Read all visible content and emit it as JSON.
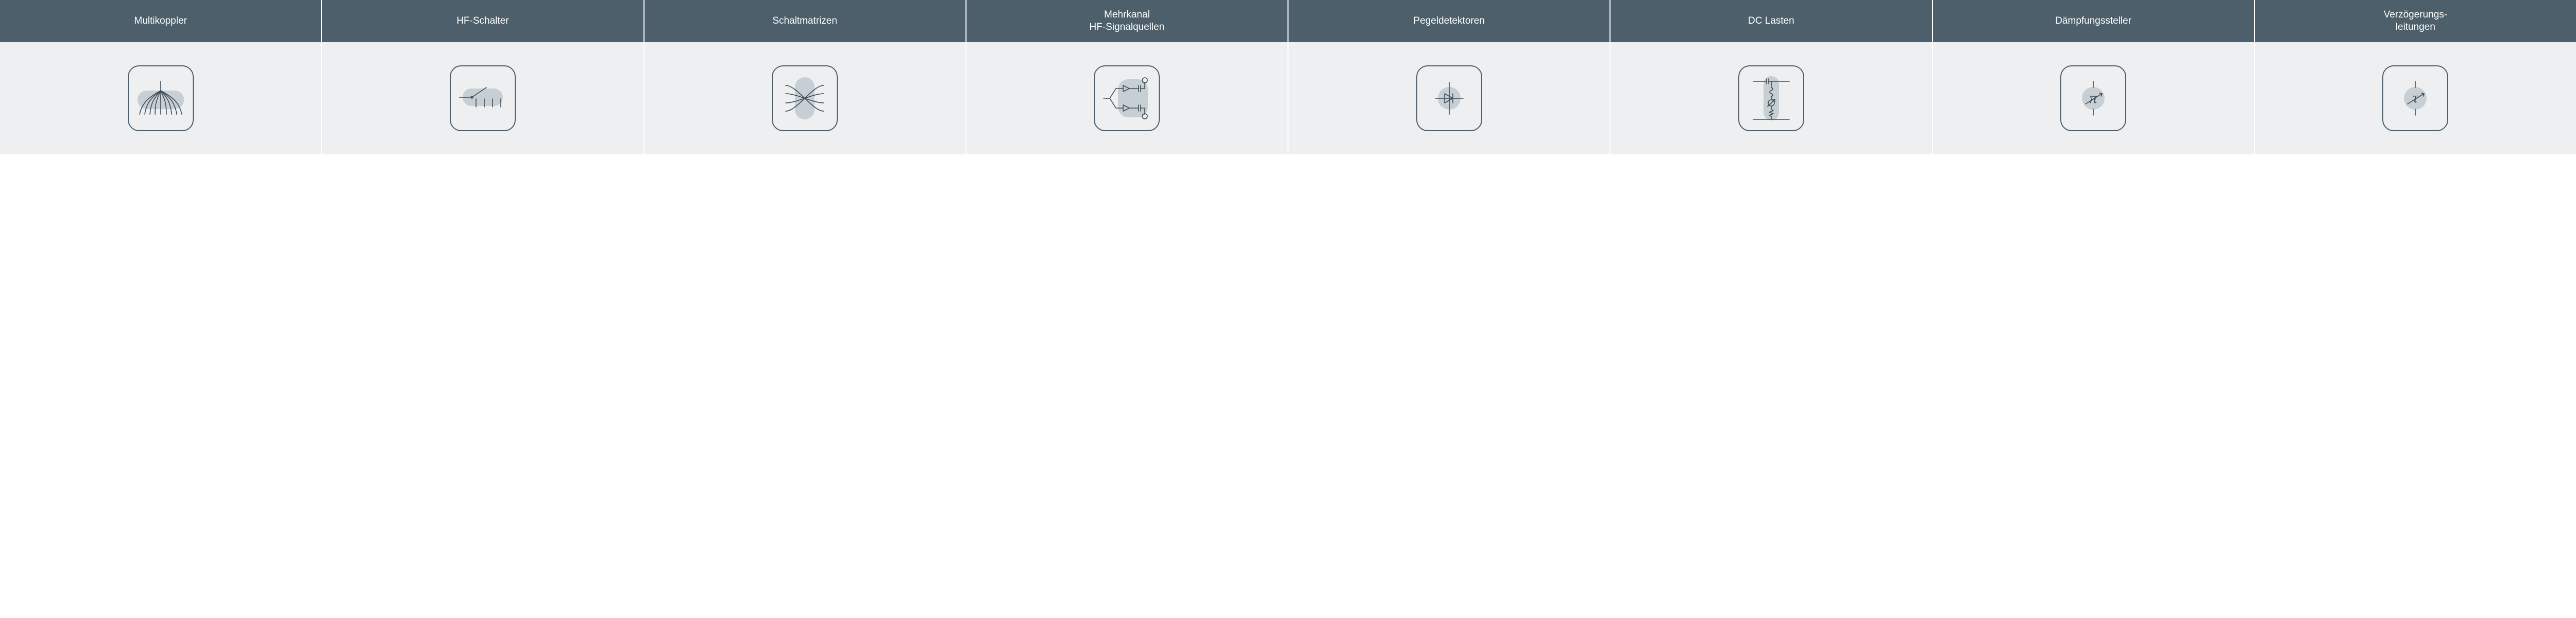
{
  "header_bg": "#4d5f6a",
  "header_text_color": "#ffffff",
  "body_bg": "#edeff0",
  "card_border_color": "#4d5f6a",
  "icon_stroke": "#3e4e58",
  "icon_fill_bg": "#c8cfd4",
  "items": [
    {
      "label": "Multikoppler",
      "icon": "multicoupler"
    },
    {
      "label": "HF-Schalter",
      "icon": "rf-switch"
    },
    {
      "label": "Schaltmatrizen",
      "icon": "switch-matrix"
    },
    {
      "label": "Mehrkanal\nHF-Signalquellen",
      "icon": "multichannel-src"
    },
    {
      "label": "Pegeldetektoren",
      "icon": "level-detector"
    },
    {
      "label": "DC Lasten",
      "icon": "dc-load"
    },
    {
      "label": "Dämpfungssteller",
      "icon": "attenuator-pi"
    },
    {
      "label": "Verzögerungs-\nleitungen",
      "icon": "delay-line-tau"
    }
  ]
}
